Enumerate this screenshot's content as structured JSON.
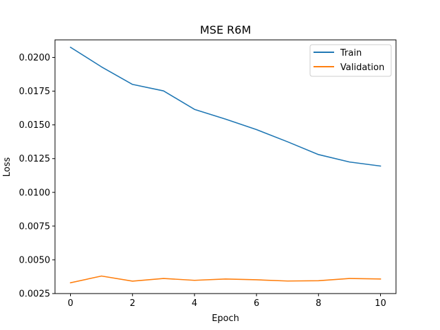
{
  "chart_data": {
    "type": "line",
    "title": "MSE R6M",
    "xlabel": "Epoch",
    "ylabel": "Loss",
    "xlim": [
      -0.5,
      10.5
    ],
    "ylim": [
      0.0025,
      0.0213
    ],
    "x_ticks": [
      0,
      2,
      4,
      6,
      8,
      10
    ],
    "x_tick_labels": [
      "0",
      "2",
      "4",
      "6",
      "8",
      "10"
    ],
    "y_ticks": [
      0.0025,
      0.005,
      0.0075,
      0.01,
      0.0125,
      0.015,
      0.0175,
      0.02
    ],
    "y_tick_labels": [
      "0.0025",
      "0.0050",
      "0.0075",
      "0.0100",
      "0.0125",
      "0.0150",
      "0.0175",
      "0.0200"
    ],
    "grid": false,
    "legend_position": "top-right",
    "x": [
      0,
      1,
      2,
      3,
      4,
      5,
      6,
      7,
      8,
      9,
      10
    ],
    "series": [
      {
        "name": "Train",
        "color": "#1f77b4",
        "values": [
          0.02075,
          0.0193,
          0.018,
          0.01752,
          0.01615,
          0.01543,
          0.01465,
          0.01375,
          0.0128,
          0.01225,
          0.01195
        ]
      },
      {
        "name": "Validation",
        "color": "#ff7f0e",
        "values": [
          0.0033,
          0.0038,
          0.00342,
          0.00362,
          0.00348,
          0.00358,
          0.00352,
          0.00343,
          0.00345,
          0.00362,
          0.00358
        ]
      }
    ]
  }
}
